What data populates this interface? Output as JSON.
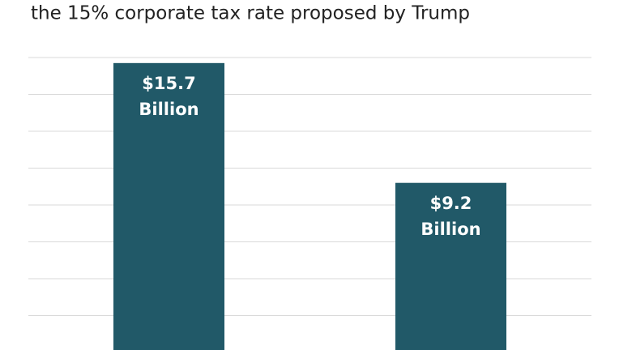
{
  "chart_data": {
    "type": "bar",
    "title": "the 15% corporate tax rate proposed by Trump",
    "categories": [
      null,
      null
    ],
    "values": [
      15.7,
      9.2
    ],
    "value_labels": [
      "$15.7 Billion",
      "$9.2 Billion"
    ],
    "color": "#215968",
    "ylim": [
      0,
      16
    ],
    "yticks": [
      0,
      2,
      4,
      6,
      8,
      10,
      12,
      14,
      16
    ],
    "grid": true
  }
}
